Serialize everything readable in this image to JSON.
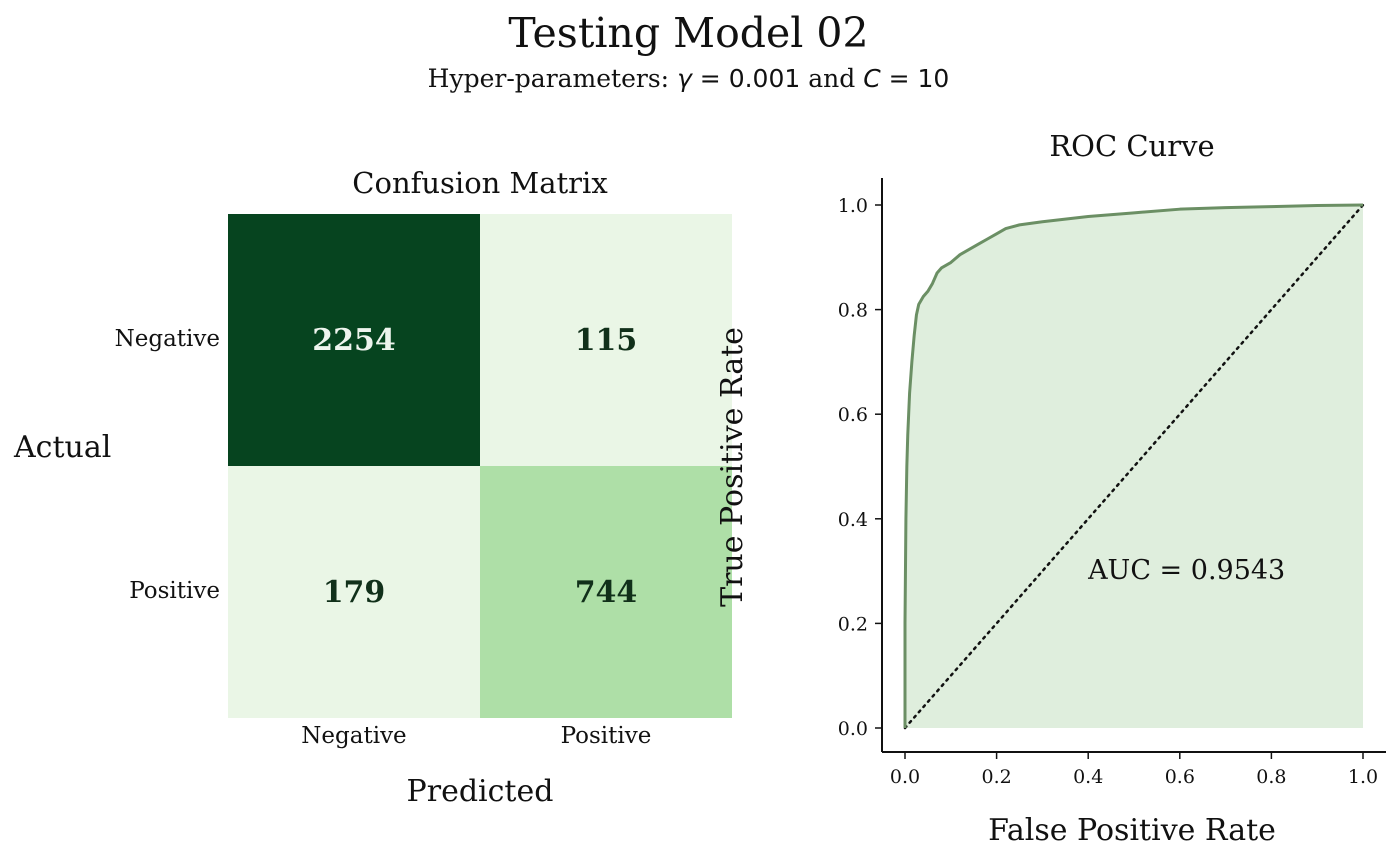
{
  "figure": {
    "title": "Testing Model 02",
    "subtitle": {
      "prefix": "Hyper-parameters: ",
      "gamma_symbol": "γ",
      "gamma_eq": " = 0.001",
      "joiner": " and ",
      "c_symbol": "C",
      "c_eq": " = 10"
    }
  },
  "colors": {
    "cm_dark": "#06441f",
    "cm_light": "#eaf6e6",
    "cm_mid": "#aedfa7",
    "text_dark_on_light": "#11301a",
    "text_light_on_dark": "#eef5ee",
    "roc_line": "#6b8f64",
    "roc_fill": "#dfeedd",
    "diagonal": "#111111"
  },
  "chart_data": [
    {
      "type": "heatmap",
      "title": "Confusion Matrix",
      "xlabel": "Predicted",
      "ylabel": "Actual",
      "row_labels": [
        "Negative",
        "Positive"
      ],
      "col_labels": [
        "Negative",
        "Positive"
      ],
      "values": [
        [
          2254,
          115
        ],
        [
          179,
          744
        ]
      ],
      "values_text": [
        [
          "2254",
          "115"
        ],
        [
          "179",
          "744"
        ]
      ],
      "cell_colors": [
        [
          "#06441f",
          "#eaf6e6"
        ],
        [
          "#eaf6e6",
          "#aedfa7"
        ]
      ],
      "legend": "none"
    },
    {
      "type": "line",
      "title": "ROC Curve",
      "xlabel": "False Positive Rate",
      "ylabel": "True Positive Rate",
      "xlim": [
        0,
        1
      ],
      "ylim": [
        0,
        1
      ],
      "xticks": [
        "0.0",
        "0.2",
        "0.4",
        "0.6",
        "0.8",
        "1.0"
      ],
      "yticks": [
        "0.0",
        "0.2",
        "0.4",
        "0.6",
        "0.8",
        "1.0"
      ],
      "grid": false,
      "area_filled": true,
      "annotation": "AUC = 0.9543",
      "series": [
        {
          "x": [
            0.0,
            0.0,
            0.002,
            0.004,
            0.006,
            0.008,
            0.01,
            0.015,
            0.02,
            0.025,
            0.03,
            0.04,
            0.05,
            0.06,
            0.07,
            0.08,
            0.09,
            0.1,
            0.12,
            0.14,
            0.16,
            0.18,
            0.2,
            0.22,
            0.25,
            0.3,
            0.35,
            0.4,
            0.5,
            0.6,
            0.7,
            0.8,
            0.9,
            1.0
          ],
          "y": [
            0.0,
            0.2,
            0.4,
            0.5,
            0.56,
            0.6,
            0.64,
            0.7,
            0.75,
            0.79,
            0.81,
            0.825,
            0.835,
            0.85,
            0.87,
            0.88,
            0.885,
            0.89,
            0.905,
            0.915,
            0.925,
            0.935,
            0.945,
            0.955,
            0.962,
            0.968,
            0.973,
            0.978,
            0.985,
            0.992,
            0.995,
            0.997,
            0.999,
            1.0
          ]
        },
        {
          "x": [
            0,
            1
          ],
          "y": [
            0,
            1
          ],
          "style": "dotted"
        }
      ]
    }
  ]
}
